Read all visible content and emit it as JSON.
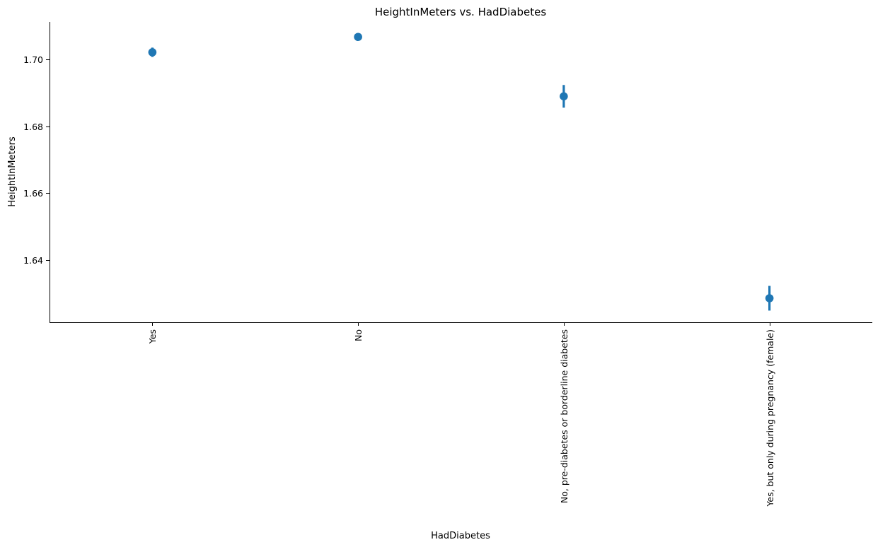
{
  "chart_data": {
    "type": "scatter",
    "title": "HeightInMeters vs. HadDiabetes",
    "xlabel": "HadDiabetes",
    "ylabel": "HeightInMeters",
    "categories": [
      "Yes",
      "No",
      "No, pre-diabetes or borderline diabetes",
      "Yes, but only during pregnancy (female)"
    ],
    "values": [
      1.7022,
      1.7068,
      1.689,
      1.6285
    ],
    "error_low": [
      1.7008,
      1.7062,
      1.6856,
      1.6248
    ],
    "error_high": [
      1.7036,
      1.7074,
      1.6924,
      1.6322
    ],
    "yticks": [
      1.64,
      1.66,
      1.68,
      1.7
    ],
    "ytick_labels": [
      "1.64",
      "1.66",
      "1.68",
      "1.70"
    ],
    "ylim": [
      1.6213,
      1.7113
    ],
    "grid": false,
    "marker_color": "#1f77b4"
  }
}
